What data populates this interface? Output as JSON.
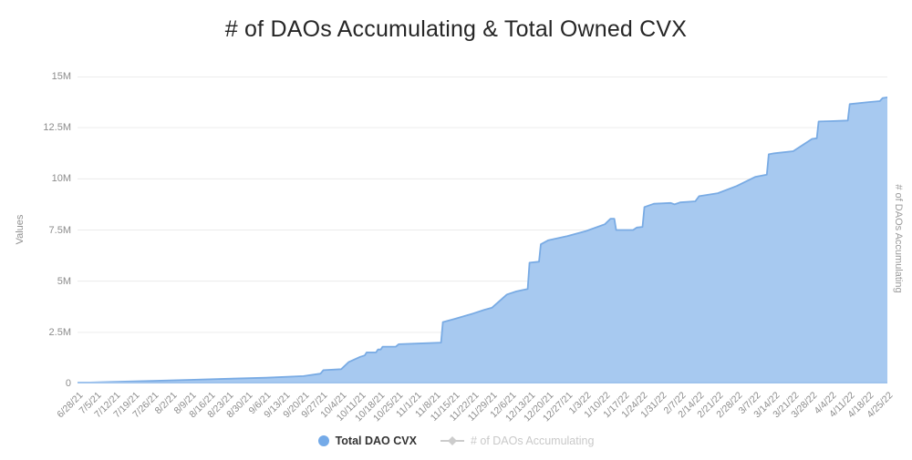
{
  "title": "# of DAOs Accumulating & Total Owned CVX",
  "legend": {
    "items": [
      {
        "label": "Total DAO CVX",
        "active": true
      },
      {
        "label": "# of DAOs Accumulating",
        "active": false
      }
    ]
  },
  "colors": {
    "area_fill": "#a7c9f0",
    "area_line": "#79abe4",
    "baseline": "#9fc3ed",
    "gridline": "#ececec",
    "legend_dot": "#74aae8",
    "inactive_gray": "#c9c9c9",
    "tick_text": "#8c8c8c"
  },
  "chart_data": {
    "type": "area",
    "title": "# of DAOs Accumulating & Total Owned CVX",
    "xlabel": "",
    "ylabel": "Values",
    "ylabel_right": "# of DAOs Accumulating",
    "units": "millions of CVX",
    "ylim_millions": [
      0,
      15
    ],
    "y_ticks": [
      "0",
      "2.5M",
      "5M",
      "7.5M",
      "10M",
      "12.5M",
      "15M"
    ],
    "y_tick_values_millions": [
      0,
      2.5,
      5,
      7.5,
      10,
      12.5,
      15
    ],
    "grid": "horizontal-only",
    "legend_position": "bottom-center",
    "categories": [
      "6/28/21",
      "7/5/21",
      "7/12/21",
      "7/19/21",
      "7/26/21",
      "8/2/21",
      "8/9/21",
      "8/16/21",
      "8/23/21",
      "8/30/21",
      "9/6/21",
      "9/13/21",
      "9/20/21",
      "9/27/21",
      "10/4/21",
      "10/11/21",
      "10/18/21",
      "10/25/21",
      "11/1/21",
      "11/8/21",
      "11/15/21",
      "11/22/21",
      "11/29/21",
      "12/6/21",
      "12/13/21",
      "12/20/21",
      "12/27/21",
      "1/3/22",
      "1/10/22",
      "1/17/22",
      "1/24/22",
      "1/31/22",
      "2/7/22",
      "2/14/22",
      "2/21/22",
      "2/28/22",
      "3/7/22",
      "3/14/22",
      "3/21/22",
      "3/28/22",
      "4/4/22",
      "4/11/22",
      "4/18/22",
      "4/25/22"
    ],
    "series": [
      {
        "name": "Total DAO CVX",
        "type": "area",
        "visible": true,
        "values_millions": [
          0.03,
          0.06,
          0.08,
          0.1,
          0.13,
          0.15,
          0.18,
          0.2,
          0.23,
          0.25,
          0.28,
          0.33,
          0.4,
          0.65,
          0.7,
          1.3,
          1.7,
          1.9,
          1.95,
          2.0,
          3.15,
          3.4,
          3.7,
          4.4,
          6.8,
          7.0,
          7.2,
          7.45,
          7.8,
          7.5,
          8.6,
          8.8,
          8.85,
          9.15,
          9.3,
          9.65,
          10.1,
          11.25,
          11.35,
          12.0,
          12.85,
          13.65,
          13.75,
          13.95
        ]
      },
      {
        "name": "# of DAOs Accumulating",
        "type": "line",
        "visible": false,
        "values_millions": []
      }
    ],
    "detail_trace_week_value_millions": [
      [
        0,
        0.03
      ],
      [
        2,
        0.08
      ],
      [
        4,
        0.13
      ],
      [
        6,
        0.18
      ],
      [
        8,
        0.23
      ],
      [
        10,
        0.28
      ],
      [
        12,
        0.36
      ],
      [
        12.9,
        0.48
      ],
      [
        13.05,
        0.65
      ],
      [
        14.0,
        0.7
      ],
      [
        14.4,
        1.05
      ],
      [
        15.0,
        1.3
      ],
      [
        15.25,
        1.37
      ],
      [
        15.35,
        1.52
      ],
      [
        15.85,
        1.52
      ],
      [
        15.95,
        1.66
      ],
      [
        16.1,
        1.66
      ],
      [
        16.2,
        1.8
      ],
      [
        16.9,
        1.8
      ],
      [
        17.05,
        1.92
      ],
      [
        18.0,
        1.95
      ],
      [
        19.3,
        2.0
      ],
      [
        19.4,
        3.0
      ],
      [
        20.0,
        3.15
      ],
      [
        21.0,
        3.42
      ],
      [
        21.6,
        3.6
      ],
      [
        22.0,
        3.7
      ],
      [
        22.8,
        4.35
      ],
      [
        23.3,
        4.5
      ],
      [
        23.9,
        4.62
      ],
      [
        24.0,
        5.9
      ],
      [
        24.5,
        5.95
      ],
      [
        24.6,
        6.8
      ],
      [
        25.0,
        7.0
      ],
      [
        26.0,
        7.2
      ],
      [
        27.0,
        7.45
      ],
      [
        28.0,
        7.78
      ],
      [
        28.3,
        8.05
      ],
      [
        28.5,
        8.05
      ],
      [
        28.6,
        7.5
      ],
      [
        29.5,
        7.5
      ],
      [
        29.7,
        7.62
      ],
      [
        30.0,
        7.65
      ],
      [
        30.1,
        8.62
      ],
      [
        30.6,
        8.78
      ],
      [
        31.0,
        8.8
      ],
      [
        31.5,
        8.82
      ],
      [
        31.7,
        8.75
      ],
      [
        32.0,
        8.85
      ],
      [
        32.8,
        8.9
      ],
      [
        33.0,
        9.15
      ],
      [
        34.0,
        9.3
      ],
      [
        35.0,
        9.65
      ],
      [
        36.0,
        10.1
      ],
      [
        36.6,
        10.2
      ],
      [
        36.7,
        11.2
      ],
      [
        37.0,
        11.25
      ],
      [
        38.0,
        11.35
      ],
      [
        39.0,
        11.95
      ],
      [
        39.25,
        11.98
      ],
      [
        39.35,
        12.8
      ],
      [
        40.0,
        12.82
      ],
      [
        40.9,
        12.85
      ],
      [
        41.0,
        13.65
      ],
      [
        42.0,
        13.75
      ],
      [
        42.6,
        13.8
      ],
      [
        42.75,
        13.95
      ],
      [
        43,
        13.98
      ]
    ]
  }
}
